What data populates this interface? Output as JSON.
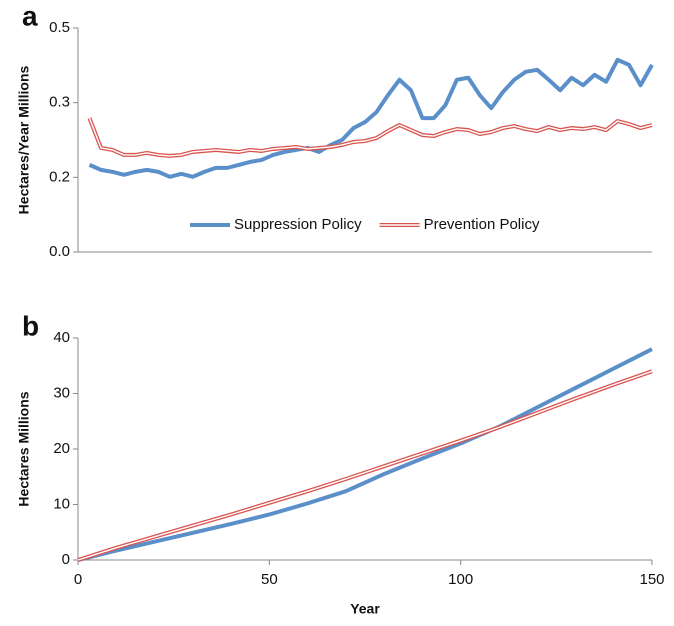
{
  "chart_data": [
    {
      "type": "line",
      "panel_label": "a",
      "ylabel": "Hectares/Year Millions",
      "xlim": [
        0,
        150
      ],
      "ylim": [
        0,
        0.45
      ],
      "yticks": [
        {
          "value": 0,
          "label": "0.0"
        },
        {
          "value": 0.15,
          "label": "0.2"
        },
        {
          "value": 0.3,
          "label": "0.3"
        },
        {
          "value": 0.45,
          "label": "0.5"
        }
      ],
      "legend": "bottom-center",
      "x": [
        3,
        6,
        9,
        12,
        15,
        18,
        21,
        24,
        27,
        30,
        33,
        36,
        39,
        42,
        45,
        48,
        51,
        54,
        57,
        60,
        63,
        66,
        69,
        72,
        75,
        78,
        81,
        84,
        87,
        90,
        93,
        96,
        99,
        102,
        105,
        108,
        111,
        114,
        117,
        120,
        123,
        126,
        129,
        132,
        135,
        138,
        141,
        144,
        147,
        150
      ],
      "series": [
        {
          "name": "Suppression Policy",
          "color": "#5b8fc9",
          "style": "solid",
          "values": [
            0.175,
            0.165,
            0.161,
            0.155,
            0.161,
            0.165,
            0.161,
            0.151,
            0.157,
            0.151,
            0.161,
            0.169,
            0.169,
            0.175,
            0.181,
            0.185,
            0.195,
            0.201,
            0.205,
            0.209,
            0.201,
            0.215,
            0.225,
            0.249,
            0.261,
            0.281,
            0.315,
            0.346,
            0.325,
            0.269,
            0.269,
            0.295,
            0.346,
            0.35,
            0.315,
            0.289,
            0.321,
            0.346,
            0.362,
            0.366,
            0.346,
            0.325,
            0.35,
            0.335,
            0.356,
            0.342,
            0.386,
            0.376,
            0.335,
            0.376
          ]
        },
        {
          "name": "Prevention Policy",
          "color": "#d9534f",
          "style": "double",
          "values": [
            0.269,
            0.209,
            0.205,
            0.195,
            0.195,
            0.199,
            0.195,
            0.193,
            0.195,
            0.201,
            0.203,
            0.205,
            0.203,
            0.201,
            0.205,
            0.203,
            0.207,
            0.209,
            0.211,
            0.207,
            0.209,
            0.211,
            0.215,
            0.221,
            0.223,
            0.229,
            0.243,
            0.255,
            0.245,
            0.235,
            0.233,
            0.241,
            0.247,
            0.245,
            0.237,
            0.241,
            0.249,
            0.253,
            0.247,
            0.243,
            0.251,
            0.245,
            0.249,
            0.247,
            0.251,
            0.245,
            0.263,
            0.257,
            0.249,
            0.255
          ]
        }
      ]
    },
    {
      "type": "line",
      "panel_label": "b",
      "ylabel": "Hectares Millions",
      "xlabel": "Year",
      "xlim": [
        0,
        150
      ],
      "ylim": [
        0,
        40
      ],
      "xticks": [
        0,
        50,
        100,
        150
      ],
      "yticks": [
        0,
        10,
        20,
        30,
        40
      ],
      "x": [
        0,
        10,
        20,
        30,
        40,
        50,
        60,
        70,
        80,
        90,
        100,
        110,
        120,
        130,
        140,
        150
      ],
      "series": [
        {
          "color": "#5b8fc9",
          "style": "solid",
          "values": [
            0,
            1.7,
            3.3,
            4.9,
            6.5,
            8.2,
            10.2,
            12.4,
            15.5,
            18.3,
            21,
            24,
            27.5,
            31,
            34.5,
            38
          ]
        },
        {
          "color": "#d9534f",
          "style": "double",
          "values": [
            0,
            2.2,
            4.2,
            6.2,
            8.2,
            10.3,
            12.4,
            14.6,
            16.9,
            19.2,
            21.5,
            23.9,
            26.5,
            29.1,
            31.6,
            34
          ]
        }
      ]
    }
  ]
}
